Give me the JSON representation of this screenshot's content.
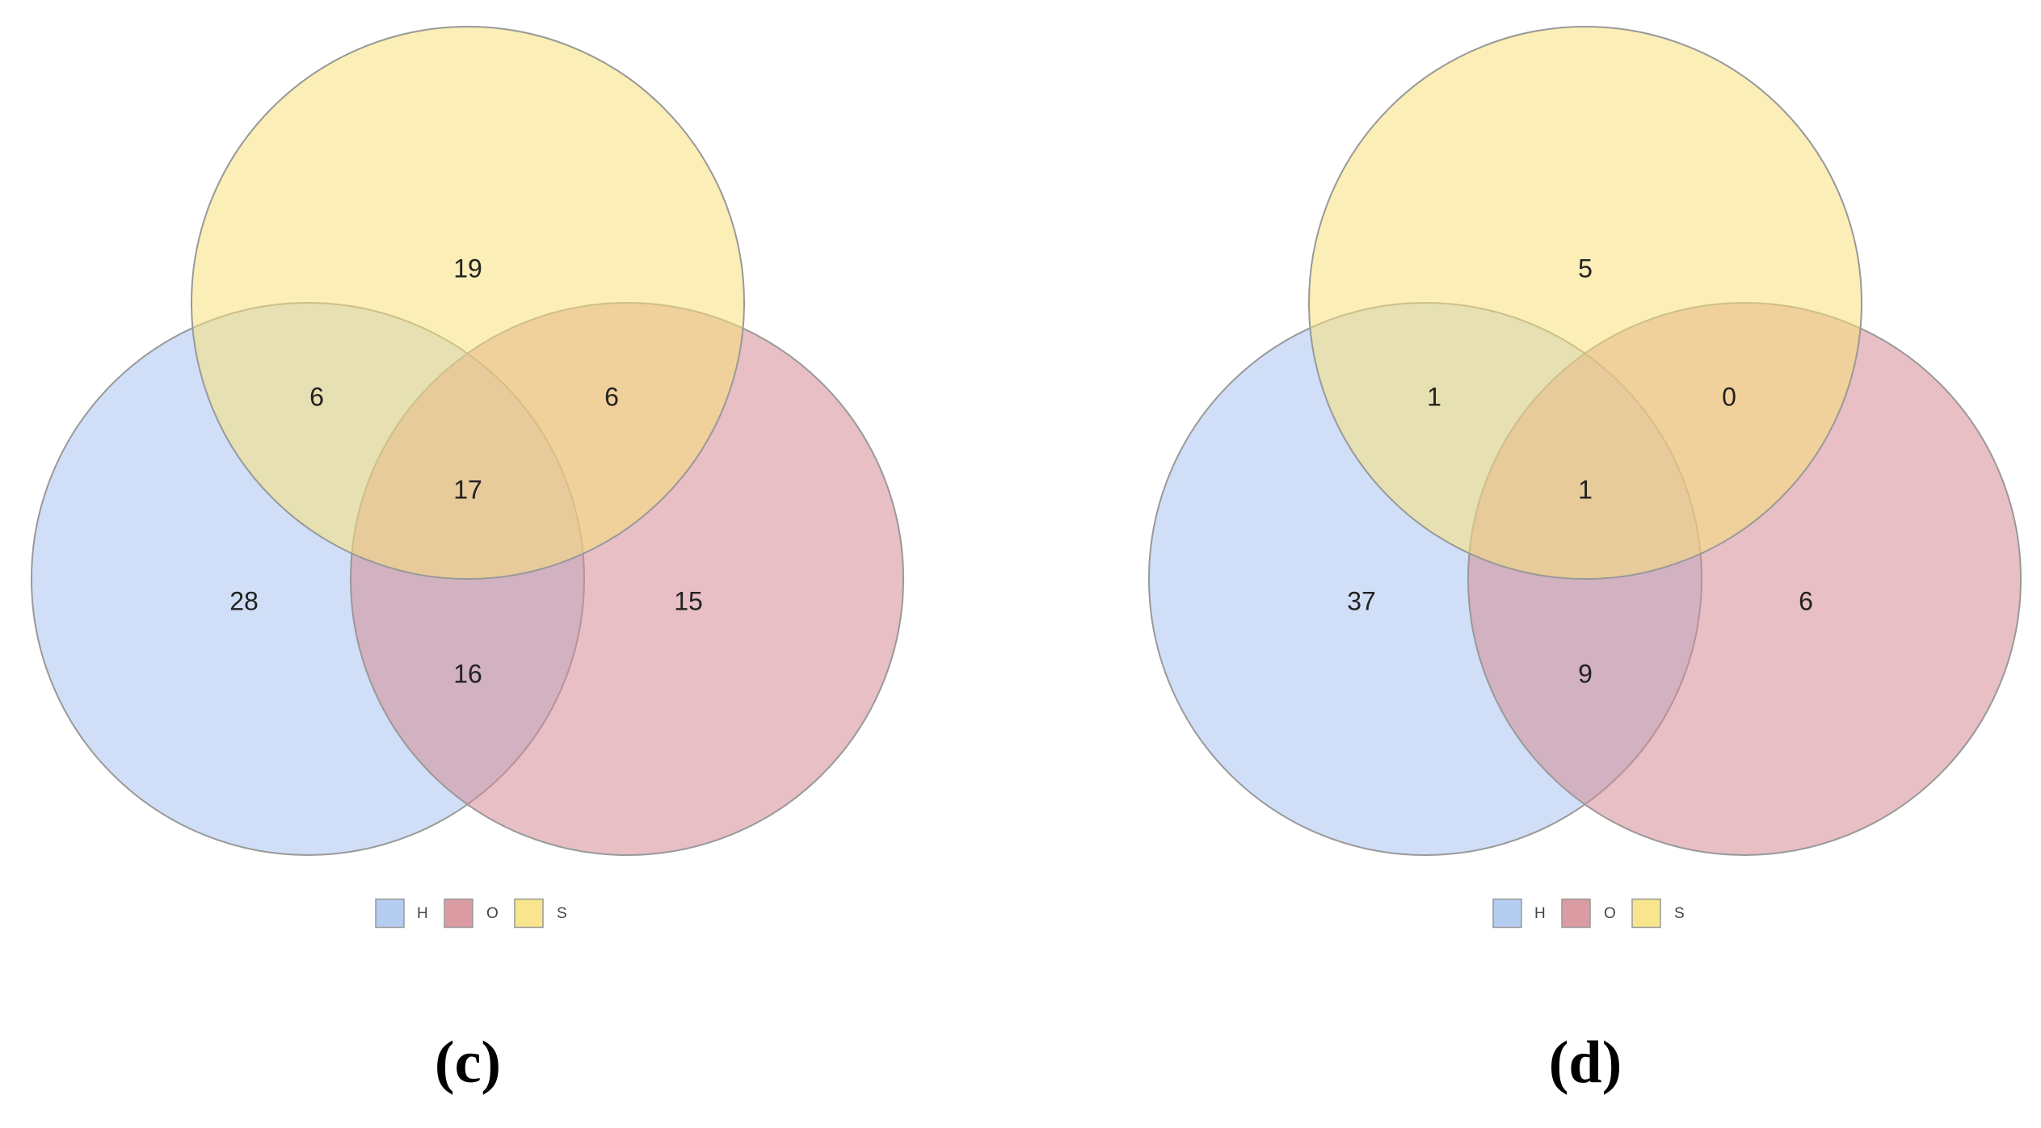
{
  "sets": [
    {
      "key": "H",
      "label": "H",
      "color": "#a9c4f0"
    },
    {
      "key": "O",
      "label": "O",
      "color": "#d48a93"
    },
    {
      "key": "S",
      "label": "S",
      "color": "#f7e07a"
    }
  ],
  "circle_opacity": 0.55,
  "circle_stroke": "#999999",
  "panels": [
    {
      "label": "(c)",
      "counts": {
        "S_only": "19",
        "H_S": "6",
        "O_S": "6",
        "H_O_S": "17",
        "H_only": "28",
        "O_only": "15",
        "H_O": "16"
      }
    },
    {
      "label": "(d)",
      "counts": {
        "S_only": "5",
        "H_S": "1",
        "O_S": "0",
        "H_O_S": "1",
        "H_only": "37",
        "O_only": "6",
        "H_O": "9"
      }
    }
  ]
}
